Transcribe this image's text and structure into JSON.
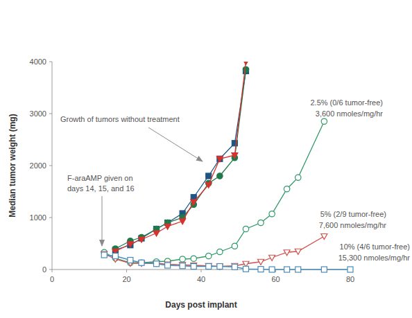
{
  "chart_data": {
    "type": "line",
    "x_label": "Days post implant",
    "y_label": "Median tumor weight (mg)",
    "xlim": [
      0,
      80
    ],
    "xticks": [
      0,
      20,
      40,
      60,
      80
    ],
    "ylim": [
      0,
      4000
    ],
    "yticks": [
      0,
      1000,
      2000,
      3000,
      4000
    ],
    "grid": false,
    "annotations": [
      {
        "text": [
          "Growth of tumors without treatment"
        ]
      },
      {
        "text": [
          "F-araAMP given on",
          "days 14, 15, and 16"
        ]
      }
    ],
    "series": [
      {
        "color": "#1f5582",
        "marker": "square",
        "x": [
          17,
          21,
          24,
          28,
          31,
          35,
          38,
          42,
          45,
          49,
          52
        ],
        "values": [
          380,
          470,
          600,
          780,
          900,
          1080,
          1390,
          1800,
          2130,
          2430,
          3820
        ]
      },
      {
        "color": "#1e7a4a",
        "marker": "circle",
        "x": [
          17,
          21,
          24,
          28,
          31,
          35,
          38,
          42,
          45,
          49,
          52
        ],
        "values": [
          400,
          550,
          620,
          780,
          900,
          1000,
          1250,
          1660,
          1800,
          2150,
          3850
        ]
      },
      {
        "color": "#d6322e",
        "marker": "triangle-down",
        "x": [
          17,
          21,
          24,
          28,
          31,
          35,
          38,
          42,
          45,
          49,
          52
        ],
        "values": [
          350,
          490,
          580,
          700,
          830,
          930,
          1300,
          1630,
          2130,
          2200,
          4000
        ]
      },
      {
        "name": "2.5% (0/6 tumor-free)",
        "dose_rate": "3,600 nmoles/mg/hr",
        "color": "#2f9a68",
        "marker": "open-circle",
        "x": [
          14,
          17,
          21,
          24,
          28,
          31,
          35,
          38,
          42,
          45,
          49,
          52,
          56,
          59,
          63,
          66,
          73
        ],
        "values": [
          330,
          220,
          130,
          130,
          150,
          160,
          200,
          210,
          260,
          340,
          450,
          780,
          900,
          1070,
          1550,
          1770,
          2850
        ]
      },
      {
        "name": "5% (2/9 tumor-free)",
        "dose_rate": "7,600 nmoles/mg/hr",
        "color": "#d0504a",
        "marker": "open-triangle-down",
        "x": [
          14,
          17,
          21,
          24,
          28,
          31,
          35,
          38,
          42,
          45,
          49,
          52,
          56,
          59,
          63,
          66,
          73
        ],
        "values": [
          300,
          200,
          120,
          120,
          120,
          100,
          90,
          80,
          70,
          60,
          70,
          110,
          150,
          230,
          330,
          350,
          640
        ]
      },
      {
        "name": "10% (4/6 tumor-free)",
        "dose_rate": "15,300 nmoles/mg/hr",
        "color": "#4a8ab8",
        "marker": "open-square",
        "x": [
          14,
          17,
          21,
          24,
          28,
          31,
          35,
          38,
          42,
          45,
          49,
          52,
          56,
          59,
          63,
          66,
          73,
          80
        ],
        "values": [
          280,
          260,
          180,
          130,
          110,
          80,
          70,
          60,
          60,
          60,
          50,
          10,
          5,
          0,
          0,
          0,
          0,
          0
        ]
      }
    ]
  }
}
